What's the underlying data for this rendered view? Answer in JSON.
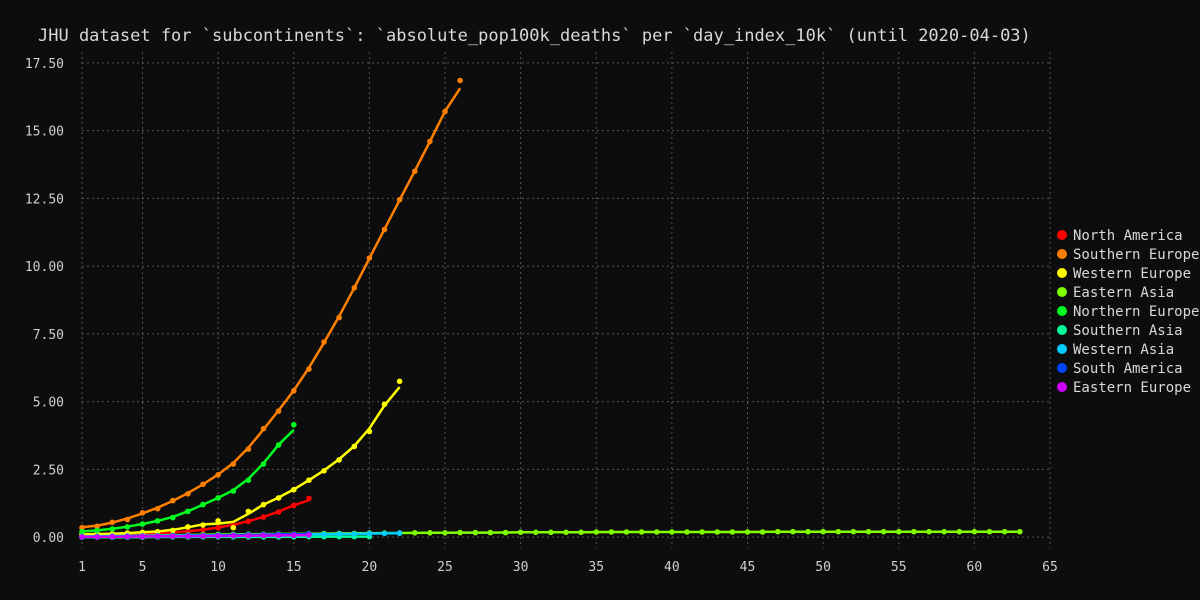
{
  "chart_data": {
    "type": "scatter",
    "title": "JHU dataset for `subcontinents`: `absolute_pop100k_deaths` per `day_index_10k` (until 2020-04-03)",
    "xlabel": "",
    "ylabel": "",
    "xlim": [
      1,
      65
    ],
    "ylim": [
      -0.4,
      17.9
    ],
    "x_ticks": [
      1,
      5,
      10,
      15,
      20,
      25,
      30,
      35,
      40,
      45,
      50,
      55,
      60,
      65
    ],
    "y_ticks": [
      0.0,
      2.5,
      5.0,
      7.5,
      10.0,
      12.5,
      15.0,
      17.5
    ],
    "y_tick_labels": [
      "0.00",
      "2.50",
      "5.00",
      "7.50",
      "10.00",
      "12.50",
      "15.00",
      "17.50"
    ],
    "grid": true,
    "legend_position": "right",
    "series": [
      {
        "name": "North America",
        "color": "#ff0000",
        "x": [
          1,
          2,
          3,
          4,
          5,
          6,
          7,
          8,
          9,
          10,
          11,
          12,
          13,
          14,
          15,
          16
        ],
        "y": [
          0.05,
          0.06,
          0.07,
          0.09,
          0.11,
          0.14,
          0.17,
          0.21,
          0.27,
          0.35,
          0.45,
          0.58,
          0.74,
          0.93,
          1.17,
          1.43
        ]
      },
      {
        "name": "Southern Europe",
        "color": "#ff8000",
        "x": [
          1,
          2,
          3,
          4,
          5,
          6,
          7,
          8,
          9,
          10,
          11,
          12,
          13,
          14,
          15,
          16,
          17,
          18,
          19,
          20,
          21,
          22,
          23,
          24,
          25,
          26
        ],
        "y": [
          0.35,
          0.4,
          0.55,
          0.65,
          0.9,
          1.05,
          1.35,
          1.6,
          1.95,
          2.3,
          2.7,
          3.25,
          4.0,
          4.65,
          5.4,
          6.2,
          7.2,
          8.1,
          9.2,
          10.3,
          11.35,
          12.45,
          13.5,
          14.6,
          15.7,
          16.85
        ]
      },
      {
        "name": "Western Europe",
        "color": "#ffff00",
        "x": [
          1,
          2,
          3,
          4,
          5,
          6,
          7,
          8,
          9,
          10,
          11,
          12,
          13,
          14,
          15,
          16,
          17,
          18,
          19,
          20,
          21,
          22
        ],
        "y": [
          0.1,
          0.12,
          0.12,
          0.15,
          0.18,
          0.2,
          0.25,
          0.38,
          0.45,
          0.6,
          0.35,
          0.95,
          1.2,
          1.45,
          1.75,
          2.1,
          2.45,
          2.85,
          3.35,
          3.9,
          4.9,
          5.75
        ]
      },
      {
        "name": "Eastern Asia",
        "color": "#7fff00",
        "x": [
          1,
          2,
          3,
          4,
          5,
          6,
          7,
          8,
          9,
          10,
          11,
          12,
          13,
          14,
          15,
          16,
          17,
          18,
          19,
          20,
          21,
          22,
          23,
          24,
          25,
          26,
          27,
          28,
          29,
          30,
          31,
          32,
          33,
          34,
          35,
          36,
          37,
          38,
          39,
          40,
          41,
          42,
          43,
          44,
          45,
          46,
          47,
          48,
          49,
          50,
          51,
          52,
          53,
          54,
          55,
          56,
          57,
          58,
          59,
          60,
          61,
          62,
          63
        ],
        "y": [
          0.01,
          0.02,
          0.03,
          0.04,
          0.05,
          0.06,
          0.07,
          0.08,
          0.09,
          0.1,
          0.1,
          0.11,
          0.11,
          0.12,
          0.12,
          0.13,
          0.13,
          0.14,
          0.14,
          0.15,
          0.15,
          0.15,
          0.16,
          0.16,
          0.16,
          0.17,
          0.17,
          0.17,
          0.17,
          0.18,
          0.18,
          0.18,
          0.18,
          0.18,
          0.19,
          0.19,
          0.19,
          0.19,
          0.19,
          0.19,
          0.19,
          0.19,
          0.19,
          0.19,
          0.19,
          0.19,
          0.2,
          0.2,
          0.2,
          0.2,
          0.2,
          0.2,
          0.2,
          0.2,
          0.2,
          0.2,
          0.2,
          0.2,
          0.2,
          0.2,
          0.2,
          0.2,
          0.2
        ]
      },
      {
        "name": "Northern Europe",
        "color": "#00ff20",
        "x": [
          1,
          2,
          3,
          4,
          5,
          6,
          7,
          8,
          9,
          10,
          11,
          12,
          13,
          14,
          15
        ],
        "y": [
          0.2,
          0.25,
          0.3,
          0.38,
          0.48,
          0.6,
          0.72,
          0.95,
          1.2,
          1.45,
          1.7,
          2.1,
          2.7,
          3.4,
          4.15
        ]
      },
      {
        "name": "Southern Asia",
        "color": "#00ff9c",
        "x": [
          1,
          2,
          3,
          4,
          5,
          6,
          7,
          8,
          9,
          10,
          11,
          12,
          13,
          14,
          15,
          16,
          17,
          18,
          19,
          20
        ],
        "y": [
          0.0,
          0.0,
          0.0,
          0.0,
          0.0,
          0.01,
          0.01,
          0.01,
          0.01,
          0.01,
          0.01,
          0.01,
          0.01,
          0.01,
          0.01,
          0.02,
          0.02,
          0.02,
          0.02,
          0.02
        ]
      },
      {
        "name": "Western Asia",
        "color": "#00ccff",
        "x": [
          1,
          2,
          3,
          4,
          5,
          6,
          7,
          8,
          9,
          10,
          11,
          12,
          13,
          14,
          15,
          16,
          17,
          18,
          19,
          20,
          21,
          22
        ],
        "y": [
          0.02,
          0.03,
          0.04,
          0.05,
          0.05,
          0.06,
          0.06,
          0.07,
          0.07,
          0.08,
          0.08,
          0.09,
          0.09,
          0.1,
          0.1,
          0.11,
          0.11,
          0.12,
          0.12,
          0.13,
          0.14,
          0.15
        ]
      },
      {
        "name": "South America",
        "color": "#0044ff",
        "x": [
          1,
          2,
          3,
          4,
          5,
          6,
          7,
          8,
          9,
          10,
          11,
          12,
          13,
          14,
          15,
          16
        ],
        "y": [
          0.01,
          0.01,
          0.02,
          0.02,
          0.03,
          0.03,
          0.04,
          0.05,
          0.05,
          0.06,
          0.07,
          0.08,
          0.09,
          0.1,
          0.11,
          0.12
        ]
      },
      {
        "name": "Eastern Europe",
        "color": "#cc00ff",
        "x": [
          1,
          2,
          3,
          4,
          5,
          6,
          7,
          8,
          9,
          10,
          11,
          12,
          13,
          14,
          15,
          16
        ],
        "y": [
          0.01,
          0.01,
          0.02,
          0.02,
          0.02,
          0.03,
          0.03,
          0.03,
          0.04,
          0.04,
          0.05,
          0.05,
          0.06,
          0.06,
          0.07,
          0.08
        ]
      }
    ]
  }
}
